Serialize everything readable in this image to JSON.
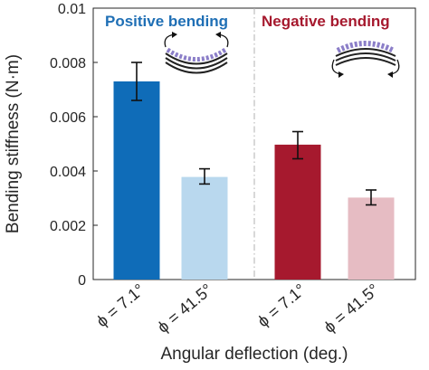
{
  "chart_data": {
    "type": "bar",
    "xlabel": "Angular deflection (deg.)",
    "ylabel": "Bending stiffness (N·m)",
    "ylim": [
      0,
      0.01
    ],
    "yticks": [
      {
        "value": 0,
        "label": "0"
      },
      {
        "value": 0.002,
        "label": "0.002"
      },
      {
        "value": 0.004,
        "label": "0.004"
      },
      {
        "value": 0.006,
        "label": "0.006"
      },
      {
        "value": 0.008,
        "label": "0.008"
      },
      {
        "value": 0.01,
        "label": "0.01"
      }
    ],
    "grid": false,
    "groups": [
      {
        "title": "Positive bending",
        "title_color": "#1f6fb5",
        "bars": [
          {
            "label": "ϕ = 7.1°",
            "value": 0.0073,
            "err_low": 0.0066,
            "err_high": 0.008,
            "color": "#0f6cb8"
          },
          {
            "label": "ϕ = 41.5°",
            "value": 0.00378,
            "err_low": 0.00352,
            "err_high": 0.00408,
            "color": "#b9d8ee"
          }
        ]
      },
      {
        "title": "Negative bending",
        "title_color": "#a6192e",
        "bars": [
          {
            "label": "ϕ = 7.1°",
            "value": 0.00497,
            "err_low": 0.00445,
            "err_high": 0.00545,
            "color": "#a6192e"
          },
          {
            "label": "ϕ = 41.5°",
            "value": 0.00302,
            "err_low": 0.00275,
            "err_high": 0.0033,
            "color": "#e6bcc3"
          }
        ]
      }
    ]
  }
}
